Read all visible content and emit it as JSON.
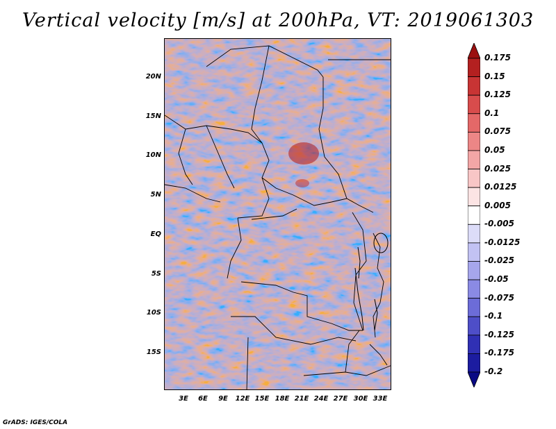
{
  "title": "Vertical velocity [m/s] at 200hPa, VT: 2019061303",
  "map": {
    "lat_labels": [
      "20N",
      "15N",
      "10N",
      "5N",
      "EQ",
      "5S",
      "10S",
      "15S"
    ],
    "lon_labels": [
      "3E",
      "6E",
      "9E",
      "12E",
      "15E",
      "18E",
      "21E",
      "24E",
      "27E",
      "30E",
      "33E"
    ]
  },
  "colorbar": {
    "labels": [
      "0.175",
      "0.15",
      "0.125",
      "0.1",
      "0.075",
      "0.05",
      "0.025",
      "0.0125",
      "0.005",
      "-0.005",
      "-0.0125",
      "-0.025",
      "-0.05",
      "-0.075",
      "-0.1",
      "-0.125",
      "-0.175",
      "-0.2"
    ],
    "colors": [
      "#9b1010",
      "#b32020",
      "#c83434",
      "#d84c4c",
      "#e46868",
      "#ec8686",
      "#f3a6a6",
      "#f8c6c6",
      "#fce4e4",
      "#ffffff",
      "#dcdcf8",
      "#c2c2f3",
      "#a6a6ec",
      "#8a8ae4",
      "#6c6cd8",
      "#4e4ec8",
      "#3030b4",
      "#1c1ca0",
      "#0a0a84"
    ]
  },
  "footer": "GrADS: IGES/COLA"
}
